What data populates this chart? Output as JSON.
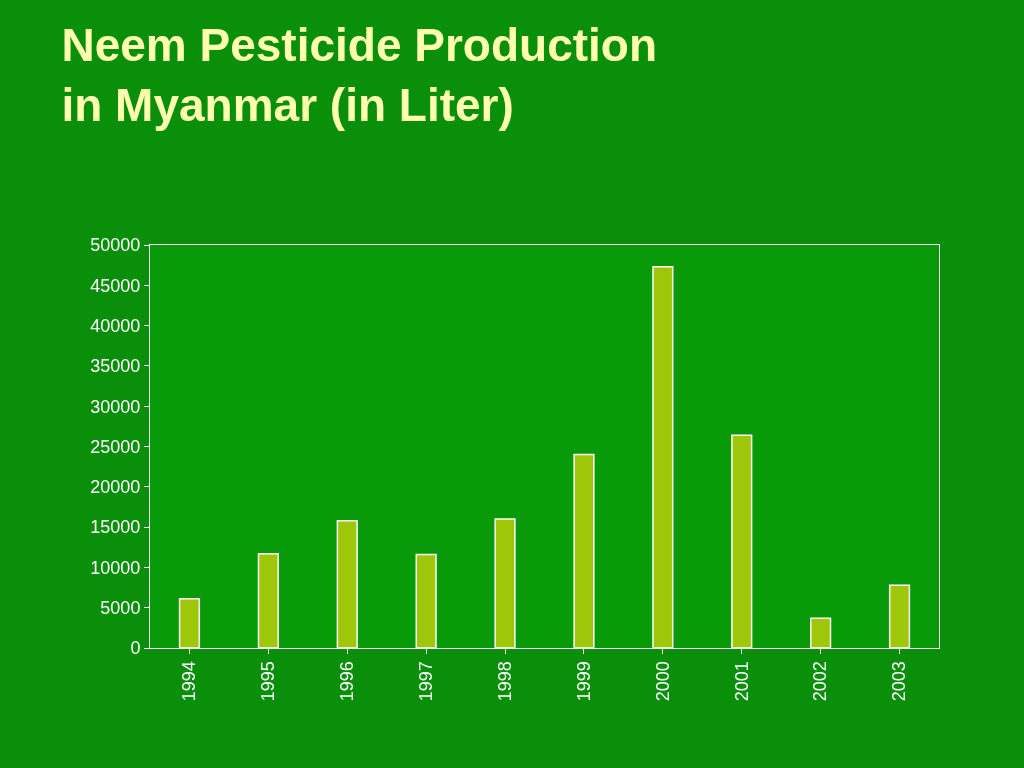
{
  "chart_data": {
    "type": "bar",
    "title": "Neem Pesticide Production\nin Myanmar (in Liter)",
    "categories": [
      "1994",
      "1995",
      "1996",
      "1997",
      "1998",
      "1999",
      "2000",
      "2001",
      "2002",
      "2003"
    ],
    "values": [
      6100,
      11700,
      15800,
      11600,
      16000,
      24000,
      47300,
      26400,
      3700,
      7800
    ],
    "color": "#9ec70a",
    "ylim": [
      0,
      50000
    ],
    "yticks": [
      0,
      5000,
      10000,
      15000,
      20000,
      25000,
      30000,
      35000,
      40000,
      45000,
      50000
    ],
    "grid": false,
    "legend": false
  }
}
